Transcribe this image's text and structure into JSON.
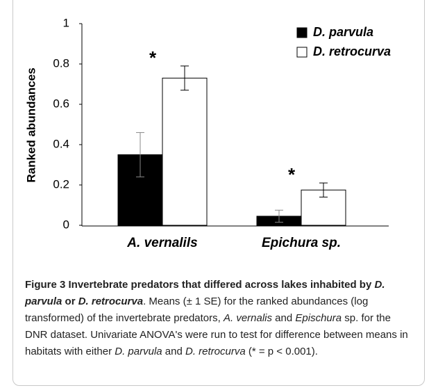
{
  "chart_data": {
    "type": "bar",
    "ylabel": "Ranked abundances",
    "categories": [
      "A. vernalils",
      "Epichura sp."
    ],
    "series": [
      {
        "name": "D. parvula",
        "color": "#000000",
        "values": [
          0.35,
          0.045
        ],
        "errors": [
          0.11,
          0.03
        ]
      },
      {
        "name": "D. retrocurva",
        "color": "#ffffff",
        "values": [
          0.73,
          0.175
        ],
        "errors": [
          0.06,
          0.035
        ]
      }
    ],
    "significance": [
      "*",
      "*"
    ],
    "ylim": [
      0,
      1
    ],
    "yticks": [
      0,
      0.2,
      0.4,
      0.6,
      0.8,
      1
    ],
    "grid": false
  },
  "caption": [
    {
      "text": "Figure 3 Invertebrate predators that differed across lakes inhabited by ",
      "bold": true,
      "italic": false
    },
    {
      "text": "D. parvula",
      "bold": true,
      "italic": true
    },
    {
      "text": " or ",
      "bold": true,
      "italic": false
    },
    {
      "text": "D. retrocurva",
      "bold": true,
      "italic": true
    },
    {
      "text": ". Means (± 1 SE) for the ranked abundances (log transformed) of the invertebrate predators, ",
      "bold": false,
      "italic": false
    },
    {
      "text": "A. vernalis",
      "bold": false,
      "italic": true
    },
    {
      "text": " and ",
      "bold": false,
      "italic": false
    },
    {
      "text": "Epischura",
      "bold": false,
      "italic": true
    },
    {
      "text": " sp. for the DNR dataset. Univariate ANOVA's were run to test for difference between means in habitats with either ",
      "bold": false,
      "italic": false
    },
    {
      "text": "D. parvula",
      "bold": false,
      "italic": true
    },
    {
      "text": " and ",
      "bold": false,
      "italic": false
    },
    {
      "text": "D. retrocurva",
      "bold": false,
      "italic": true
    },
    {
      "text": " (* = p < 0.001).",
      "bold": false,
      "italic": false
    }
  ]
}
